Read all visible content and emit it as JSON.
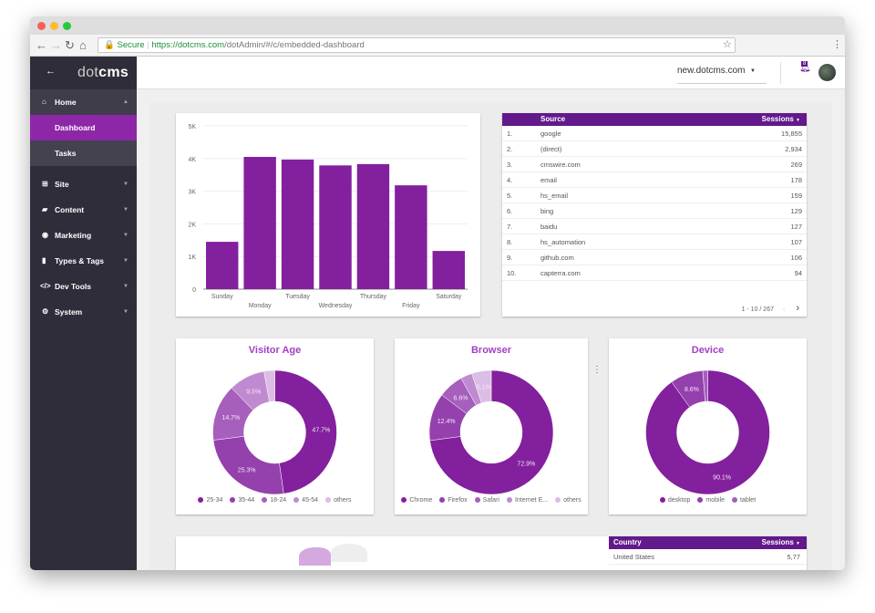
{
  "browser": {
    "secure_label": "Secure",
    "url_host": "https://dotcms.com",
    "url_path": "/dotAdmin/#/c/embedded-dashboard"
  },
  "sidebar": {
    "logo_dot": "dot",
    "logo_cms": "cms",
    "items": [
      {
        "label": "Home",
        "icon": "home-icon"
      },
      {
        "label": "Dashboard"
      },
      {
        "label": "Tasks"
      },
      {
        "label": "Site",
        "icon": "sitemap-icon"
      },
      {
        "label": "Content",
        "icon": "folder-icon"
      },
      {
        "label": "Marketing",
        "icon": "bullseye-icon"
      },
      {
        "label": "Types & Tags",
        "icon": "file-icon"
      },
      {
        "label": "Dev Tools",
        "icon": "code-icon"
      },
      {
        "label": "System",
        "icon": "gear-icon"
      }
    ]
  },
  "header": {
    "site": "new.dotcms.com",
    "notifications": "8"
  },
  "colors": {
    "primary": "#83209e",
    "header": "#62198b",
    "title": "#a23fc4"
  },
  "sources_table": {
    "col_source": "Source",
    "col_sessions": "Sessions",
    "rows": [
      {
        "n": "1.",
        "source": "google",
        "sessions": "15,855"
      },
      {
        "n": "2.",
        "source": "(direct)",
        "sessions": "2,934"
      },
      {
        "n": "3.",
        "source": "cmswire.com",
        "sessions": "269"
      },
      {
        "n": "4.",
        "source": "email",
        "sessions": "178"
      },
      {
        "n": "5.",
        "source": "hs_email",
        "sessions": "159"
      },
      {
        "n": "6.",
        "source": "bing",
        "sessions": "129"
      },
      {
        "n": "7.",
        "source": "baidu",
        "sessions": "127"
      },
      {
        "n": "8.",
        "source": "hs_automation",
        "sessions": "107"
      },
      {
        "n": "9.",
        "source": "github.com",
        "sessions": "106"
      },
      {
        "n": "10.",
        "source": "capterra.com",
        "sessions": "94"
      }
    ],
    "pagination": "1 - 10 / 267"
  },
  "country_table": {
    "col_country": "Country",
    "col_sessions": "Sessions",
    "first_row": "United States",
    "first_value": "5,77"
  },
  "chart_data": [
    {
      "type": "bar",
      "title": "",
      "categories": [
        "Sunday",
        "Monday",
        "Tuesday",
        "Wednesday",
        "Thursday",
        "Friday",
        "Saturday"
      ],
      "values": [
        1450,
        4050,
        3970,
        3790,
        3830,
        3180,
        1170
      ],
      "yticks": [
        "0",
        "1K",
        "2K",
        "3K",
        "4K",
        "5K"
      ],
      "ylim": [
        0,
        5000
      ]
    },
    {
      "type": "pie",
      "title": "Visitor Age",
      "labels": [
        "25-34",
        "35-44",
        "18-24",
        "45-54",
        "others"
      ],
      "values": [
        47.7,
        25.3,
        14.7,
        9.5,
        2.8
      ],
      "data_labels": [
        "47.7%",
        "25.3%",
        "14.7%",
        "9.5%",
        ""
      ]
    },
    {
      "type": "pie",
      "title": "Browser",
      "labels": [
        "Chrome",
        "Firefox",
        "Safari",
        "Internet E...",
        "others"
      ],
      "values": [
        72.9,
        12.4,
        6.6,
        3.0,
        5.1
      ],
      "data_labels": [
        "72.9%",
        "12.4%",
        "6.6%",
        "",
        "5.1%"
      ]
    },
    {
      "type": "pie",
      "title": "Device",
      "labels": [
        "desktop",
        "mobile",
        "tablet"
      ],
      "values": [
        90.1,
        8.6,
        1.3
      ],
      "data_labels": [
        "90.1%",
        "8.6%",
        ""
      ]
    }
  ]
}
